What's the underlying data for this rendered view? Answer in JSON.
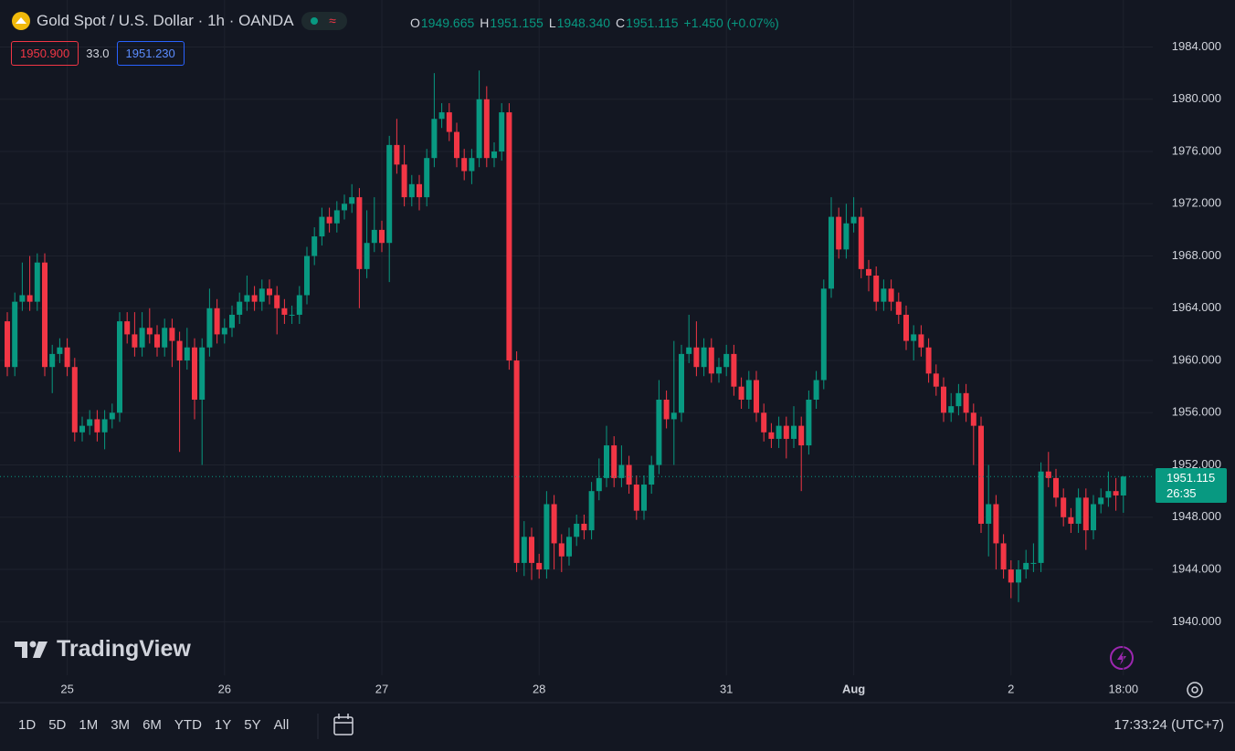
{
  "header": {
    "title": "Gold Spot / U.S. Dollar · 1h · OANDA",
    "ohlc": [
      {
        "label": "O",
        "value": "1949.665"
      },
      {
        "label": "H",
        "value": "1951.155"
      },
      {
        "label": "L",
        "value": "1948.340"
      },
      {
        "label": "C",
        "value": "1951.115"
      }
    ],
    "change": "+1.450 (+0.07%)"
  },
  "quote": {
    "bid": "1950.900",
    "spread": "33.0",
    "ask": "1951.230"
  },
  "price_tag": {
    "price": "1951.115",
    "countdown": "26:35"
  },
  "brand": "TradingView",
  "ranges": [
    "1D",
    "5D",
    "1M",
    "3M",
    "6M",
    "YTD",
    "1Y",
    "5Y",
    "All"
  ],
  "clock": "17:33:24 (UTC+7)",
  "chart_data": {
    "type": "candlestick",
    "up_color": "#089981",
    "down_color": "#f23645",
    "grid": true,
    "ylim": [
      1935.9,
      1987.6
    ],
    "yticks": [
      {
        "value": 1940,
        "label": "1940.000"
      },
      {
        "value": 1944,
        "label": "1944.000"
      },
      {
        "value": 1948,
        "label": "1948.000"
      },
      {
        "value": 1952,
        "label": "1952.000"
      },
      {
        "value": 1956,
        "label": "1956.000"
      },
      {
        "value": 1960,
        "label": "1960.000"
      },
      {
        "value": 1964,
        "label": "1964.000"
      },
      {
        "value": 1968,
        "label": "1968.000"
      },
      {
        "value": 1972,
        "label": "1972.000"
      },
      {
        "value": 1976,
        "label": "1976.000"
      },
      {
        "value": 1980,
        "label": "1980.000"
      },
      {
        "value": 1984,
        "label": "1984.000"
      }
    ],
    "categories": [
      null,
      null,
      null,
      null,
      null,
      null,
      null,
      null,
      "25",
      null,
      null,
      null,
      null,
      null,
      null,
      null,
      null,
      null,
      null,
      null,
      null,
      null,
      null,
      null,
      null,
      null,
      null,
      null,
      null,
      "26",
      null,
      null,
      null,
      null,
      null,
      null,
      null,
      null,
      null,
      null,
      null,
      null,
      null,
      null,
      null,
      null,
      null,
      null,
      null,
      null,
      "27",
      null,
      null,
      null,
      null,
      null,
      null,
      null,
      null,
      null,
      null,
      null,
      null,
      null,
      null,
      null,
      null,
      null,
      null,
      null,
      null,
      "28",
      null,
      null,
      null,
      null,
      null,
      null,
      null,
      null,
      null,
      null,
      null,
      null,
      null,
      null,
      null,
      null,
      null,
      null,
      null,
      null,
      null,
      null,
      null,
      null,
      "31",
      null,
      null,
      null,
      null,
      null,
      null,
      null,
      null,
      null,
      null,
      null,
      null,
      null,
      null,
      null,
      null,
      "Aug",
      null,
      null,
      null,
      null,
      null,
      null,
      null,
      null,
      null,
      null,
      null,
      null,
      null,
      null,
      null,
      null,
      null,
      null,
      null,
      null,
      "2",
      null,
      null,
      null,
      null,
      null,
      null,
      null,
      null,
      null,
      null,
      null,
      null,
      null,
      null,
      "18:00"
    ],
    "open": [
      1963,
      1959.5,
      1964.5,
      1965,
      1964.5,
      1967.5,
      1959.5,
      1960.5,
      1961,
      1959.5,
      1954.5,
      1955,
      1955.5,
      1954.5,
      1955.5,
      1956,
      1963,
      1962,
      1961,
      1962.5,
      1962,
      1961,
      1962.5,
      1961.5,
      1960,
      1961,
      1957,
      1961,
      1964,
      1962,
      1962.5,
      1963.5,
      1964.5,
      1965,
      1964.5,
      1965.5,
      1965,
      1964,
      1963.5,
      1963.5,
      1965,
      1968,
      1969.5,
      1971,
      1970.5,
      1971.5,
      1972,
      1972.5,
      1967,
      1969,
      1970,
      1969,
      1976.5,
      1975,
      1972.5,
      1973.5,
      1972.5,
      1975.5,
      1978.5,
      1979,
      1977.5,
      1975.5,
      1974.5,
      1975.5,
      1980,
      1975.5,
      1976,
      1979,
      1960,
      1944.5,
      1946.5,
      1944.5,
      1944,
      1949,
      1946,
      1945,
      1946.5,
      1947.5,
      1947,
      1950,
      1951,
      1953.5,
      1951,
      1952,
      1950.5,
      1948.5,
      1950.5,
      1952,
      1957,
      1955.5,
      1956,
      1960.5,
      1961,
      1959.5,
      1961,
      1959,
      1959.5,
      1960.5,
      1958,
      1957,
      1958.5,
      1956,
      1954.5,
      1954,
      1955,
      1954,
      1955,
      1953.5,
      1957,
      1958.5,
      1965.5,
      1971,
      1968.5,
      1970.5,
      1971,
      1967,
      1966.5,
      1964.5,
      1965.5,
      1964.5,
      1963.5,
      1961.5,
      1962,
      1961,
      1959,
      1958,
      1956,
      1956.5,
      1957.5,
      1956,
      1955,
      1947.5,
      1949,
      1946,
      1944,
      1943,
      1944,
      1944.5,
      1944.5,
      1951.5,
      1951,
      1949.5,
      1948,
      1947.5,
      1949.5,
      1947,
      1949,
      1949.5,
      1950,
      1949.665
    ],
    "high": [
      1963.7,
      1965.2,
      1967.5,
      1968,
      1968.2,
      1968.2,
      1961.2,
      1961.7,
      1961.7,
      1960.2,
      1955.7,
      1956.2,
      1956.2,
      1956.2,
      1956.7,
      1963.7,
      1963.7,
      1963.7,
      1963.7,
      1964,
      1962.7,
      1963.2,
      1963.2,
      1962.2,
      1962.5,
      1961.7,
      1961.7,
      1965.5,
      1964.7,
      1963.2,
      1964.2,
      1965.2,
      1966.5,
      1965.7,
      1966.2,
      1966.2,
      1965.7,
      1964.7,
      1964.2,
      1965.7,
      1968.7,
      1970.2,
      1971.7,
      1971.7,
      1972.2,
      1972.7,
      1973.5,
      1973.2,
      1971.5,
      1972.5,
      1970.7,
      1977.2,
      1978.5,
      1976.5,
      1974.2,
      1974.2,
      1976.2,
      1982,
      1979.7,
      1979.7,
      1978.2,
      1976.2,
      1976.2,
      1982.2,
      1981,
      1976.7,
      1979.7,
      1979.7,
      1960.7,
      1947.7,
      1947.2,
      1945.2,
      1950,
      1949.7,
      1946.7,
      1947.2,
      1948.2,
      1948.2,
      1950.7,
      1952.5,
      1955,
      1954.2,
      1953.5,
      1952.7,
      1951.2,
      1951.2,
      1952.7,
      1958.5,
      1957.7,
      1961.5,
      1961.2,
      1963.5,
      1963,
      1961.7,
      1961.7,
      1960.2,
      1961.2,
      1961.2,
      1958.7,
      1959.2,
      1959.2,
      1956.7,
      1955.2,
      1955.7,
      1955.7,
      1956.5,
      1955.7,
      1957.7,
      1959.2,
      1966.2,
      1972.5,
      1971.7,
      1972,
      1972.5,
      1971.7,
      1967.7,
      1967.2,
      1966.2,
      1966.2,
      1965.2,
      1964.2,
      1962.7,
      1962.7,
      1961.7,
      1959.7,
      1958.7,
      1957.5,
      1958.2,
      1958.2,
      1956.7,
      1955.7,
      1952,
      1949.7,
      1946.7,
      1944.7,
      1944.7,
      1945.5,
      1946,
      1952.2,
      1953,
      1951.7,
      1950.2,
      1948.7,
      1950.2,
      1950.2,
      1949.7,
      1950.2,
      1951.5,
      1951,
      1951.155
    ],
    "low": [
      1958.8,
      1958.8,
      1963.8,
      1963.8,
      1963.8,
      1958.8,
      1957.5,
      1959.8,
      1958.8,
      1953.8,
      1953.8,
      1954.3,
      1953.8,
      1953.2,
      1954.8,
      1955.3,
      1961.3,
      1960.3,
      1960.3,
      1961.3,
      1960.3,
      1960.3,
      1959.5,
      1953,
      1959.3,
      1955.5,
      1952,
      1960.3,
      1961.3,
      1961.3,
      1961.8,
      1962.8,
      1963.8,
      1963.8,
      1963.8,
      1964.3,
      1962,
      1962.8,
      1962.8,
      1962.8,
      1964.3,
      1967.3,
      1968.8,
      1969.8,
      1969.8,
      1970.8,
      1971.3,
      1964,
      1966.3,
      1968.3,
      1968.3,
      1966,
      1974.3,
      1971.8,
      1971.8,
      1971.5,
      1971.8,
      1974.8,
      1977.8,
      1976.8,
      1974.8,
      1973.8,
      1973.5,
      1974.8,
      1974.8,
      1974.8,
      1975.3,
      1959.3,
      1943.8,
      1943.5,
      1943.2,
      1943.3,
      1943.3,
      1944,
      1943.8,
      1944.3,
      1945.8,
      1946.3,
      1946.3,
      1949.3,
      1950.3,
      1950.3,
      1950.3,
      1949.8,
      1947.8,
      1947.8,
      1949.8,
      1951.3,
      1954.8,
      1952,
      1955.3,
      1959.8,
      1958.8,
      1958.8,
      1958.3,
      1958.3,
      1958.8,
      1957.3,
      1956.3,
      1956.3,
      1955.3,
      1953.8,
      1953.3,
      1953.3,
      1952.5,
      1953.3,
      1950,
      1952.8,
      1956.3,
      1957.8,
      1964.8,
      1967.8,
      1967.8,
      1969.8,
      1966.3,
      1965.3,
      1963.8,
      1963.8,
      1963.8,
      1962.8,
      1960.8,
      1960,
      1960.3,
      1958.3,
      1957.3,
      1955.3,
      1955.3,
      1955.8,
      1955.3,
      1952,
      1946.8,
      1945,
      1944,
      1943.3,
      1941.8,
      1941.5,
      1943.3,
      1943.8,
      1943.8,
      1950.3,
      1948.8,
      1947.3,
      1946.8,
      1946.8,
      1945.5,
      1946.3,
      1948.3,
      1948.8,
      1948.5,
      1948.34
    ],
    "close": [
      1959.5,
      1964.5,
      1965,
      1964.5,
      1967.5,
      1959.5,
      1960.5,
      1961,
      1959.5,
      1954.5,
      1955,
      1955.5,
      1954.5,
      1955.5,
      1956,
      1963,
      1962,
      1961,
      1962.5,
      1962,
      1961,
      1962.5,
      1961.5,
      1960,
      1961,
      1957,
      1961,
      1964,
      1962,
      1962.5,
      1963.5,
      1964.5,
      1965,
      1964.5,
      1965.5,
      1965,
      1964,
      1963.5,
      1963.5,
      1965,
      1968,
      1969.5,
      1971,
      1970.5,
      1971.5,
      1972,
      1972.5,
      1967,
      1969,
      1970,
      1969,
      1976.5,
      1975,
      1972.5,
      1973.5,
      1972.5,
      1975.5,
      1978.5,
      1979,
      1977.5,
      1975.5,
      1974.5,
      1975.5,
      1980,
      1975.5,
      1976,
      1979,
      1960,
      1944.5,
      1946.5,
      1944.5,
      1944,
      1949,
      1946,
      1945,
      1946.5,
      1947.5,
      1947,
      1950,
      1951,
      1953.5,
      1951,
      1952,
      1950.5,
      1948.5,
      1950.5,
      1952,
      1957,
      1955.5,
      1956,
      1960.5,
      1961,
      1959.5,
      1961,
      1959,
      1959.5,
      1960.5,
      1958,
      1957,
      1958.5,
      1956,
      1954.5,
      1954,
      1955,
      1954,
      1955,
      1953.5,
      1957,
      1958.5,
      1965.5,
      1971,
      1968.5,
      1970.5,
      1971,
      1967,
      1966.5,
      1964.5,
      1965.5,
      1964.5,
      1963.5,
      1961.5,
      1962,
      1961,
      1959,
      1958,
      1956,
      1956.5,
      1957.5,
      1956,
      1955,
      1947.5,
      1949,
      1946,
      1944,
      1943,
      1944,
      1944.5,
      1944.5,
      1951.5,
      1951,
      1949.5,
      1948,
      1947.5,
      1949.5,
      1947,
      1949,
      1949.5,
      1950,
      1949.665,
      1951.115
    ]
  }
}
